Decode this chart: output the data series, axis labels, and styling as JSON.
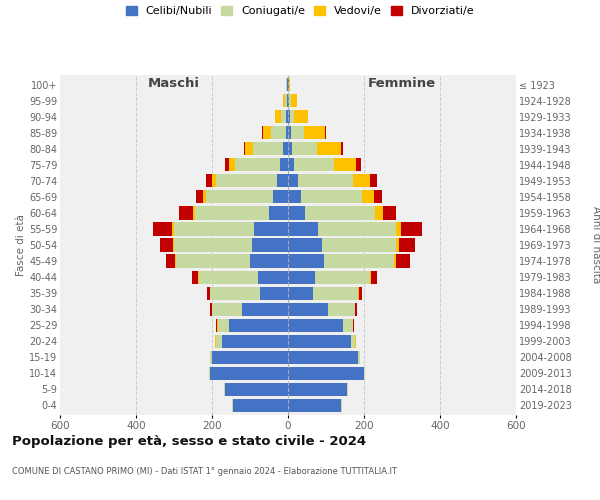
{
  "age_groups": [
    "0-4",
    "5-9",
    "10-14",
    "15-19",
    "20-24",
    "25-29",
    "30-34",
    "35-39",
    "40-44",
    "45-49",
    "50-54",
    "55-59",
    "60-64",
    "65-69",
    "70-74",
    "75-79",
    "80-84",
    "85-89",
    "90-94",
    "95-99",
    "100+"
  ],
  "birth_years": [
    "2019-2023",
    "2014-2018",
    "2009-2013",
    "2004-2008",
    "1999-2003",
    "1994-1998",
    "1989-1993",
    "1984-1988",
    "1979-1983",
    "1974-1978",
    "1969-1973",
    "1964-1968",
    "1959-1963",
    "1954-1958",
    "1949-1953",
    "1944-1948",
    "1939-1943",
    "1934-1938",
    "1929-1933",
    "1924-1928",
    "≤ 1923"
  ],
  "maschi": {
    "celibi": [
      145,
      165,
      205,
      200,
      175,
      155,
      120,
      75,
      80,
      100,
      95,
      90,
      50,
      40,
      30,
      20,
      12,
      6,
      4,
      3,
      2
    ],
    "coniugati": [
      2,
      3,
      3,
      5,
      15,
      30,
      80,
      130,
      155,
      195,
      205,
      210,
      195,
      175,
      160,
      120,
      80,
      40,
      15,
      5,
      2
    ],
    "vedovi": [
      0,
      0,
      0,
      0,
      1,
      1,
      1,
      1,
      2,
      2,
      3,
      5,
      6,
      8,
      10,
      15,
      20,
      20,
      15,
      5,
      1
    ],
    "divorziati": [
      0,
      0,
      0,
      1,
      2,
      3,
      5,
      8,
      15,
      25,
      35,
      50,
      35,
      20,
      15,
      10,
      5,
      2,
      1,
      0,
      0
    ]
  },
  "femmine": {
    "nubili": [
      140,
      155,
      200,
      185,
      165,
      145,
      105,
      65,
      70,
      95,
      90,
      80,
      45,
      35,
      25,
      15,
      10,
      7,
      5,
      3,
      2
    ],
    "coniugate": [
      1,
      2,
      3,
      4,
      12,
      25,
      70,
      120,
      145,
      185,
      195,
      205,
      185,
      160,
      145,
      105,
      65,
      35,
      12,
      5,
      1
    ],
    "vedove": [
      0,
      0,
      0,
      0,
      1,
      1,
      2,
      2,
      4,
      5,
      8,
      12,
      20,
      30,
      45,
      60,
      65,
      55,
      35,
      15,
      2
    ],
    "divorziate": [
      0,
      0,
      0,
      1,
      2,
      3,
      5,
      8,
      15,
      35,
      40,
      55,
      35,
      22,
      18,
      12,
      5,
      3,
      1,
      0,
      0
    ]
  },
  "colors": {
    "celibi": "#4472c4",
    "coniugati": "#c5d9a0",
    "vedovi": "#ffc000",
    "divorziati": "#c00000"
  },
  "title": "Popolazione per età, sesso e stato civile - 2024",
  "subtitle": "COMUNE DI CASTANO PRIMO (MI) - Dati ISTAT 1° gennaio 2024 - Elaborazione TUTTITALIA.IT",
  "ylabel_left": "Fasce di età",
  "ylabel_right": "Anni di nascita",
  "xlabel_left": "Maschi",
  "xlabel_right": "Femmine",
  "xlim": 600,
  "legend_labels": [
    "Celibi/Nubili",
    "Coniugati/e",
    "Vedovi/e",
    "Divorziati/e"
  ],
  "bg_color": "#ffffff",
  "plot_bg_color": "#f0f0f0",
  "grid_color": "#cccccc"
}
